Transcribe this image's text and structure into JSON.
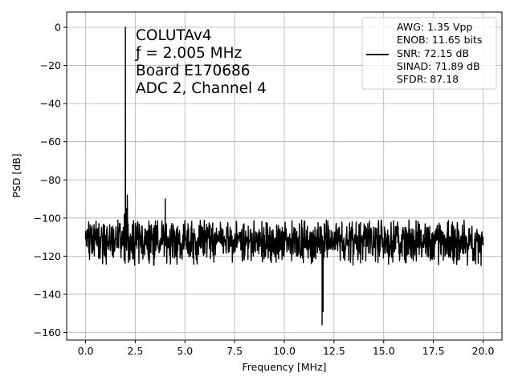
{
  "chart_data": {
    "type": "line",
    "title": "",
    "xlabel": "Frequency [MHz]",
    "ylabel": "PSD [dB]",
    "xlim": [
      -0.95,
      20.95
    ],
    "ylim": [
      -164,
      8
    ],
    "xticks": [
      0.0,
      2.5,
      5.0,
      7.5,
      10.0,
      12.5,
      15.0,
      17.5,
      20.0
    ],
    "xtick_labels": [
      "0.0",
      "2.5",
      "5.0",
      "7.5",
      "10.0",
      "12.5",
      "15.0",
      "17.5",
      "20.0"
    ],
    "yticks": [
      0,
      -20,
      -40,
      -60,
      -80,
      -100,
      -120,
      -140,
      -160
    ],
    "ytick_labels": [
      "0",
      "−20",
      "−40",
      "−60",
      "−80",
      "−100",
      "−120",
      "−140",
      "−160"
    ],
    "grid": true,
    "legend_placement": "top-right",
    "series": [
      {
        "color": "#000000",
        "noise_floor_db": -112,
        "noise_band_db": [
          -125,
          -101
        ],
        "x": [
          0.0,
          1.8,
          1.95,
          2.005,
          2.05,
          2.1,
          2.3,
          4.01,
          4.05,
          11.9,
          11.95,
          12.0,
          20.0
        ],
        "y": [
          -107,
          -113,
          -98,
          0,
          -95,
          -88,
          -112,
          -90,
          -112,
          -156,
          -149,
          -112,
          -110
        ]
      }
    ],
    "annotation_lines": [
      "COLUTAv4",
      "ƒ = 2.005 MHz",
      "Board E170686",
      "ADC 2, Channel 4"
    ],
    "legend_lines": [
      "AWG: 1.35 Vpp",
      "ENOB: 11.65 bits",
      "SNR: 72.15 dB",
      "SINAD: 71.89 dB",
      "SFDR: 87.18"
    ]
  }
}
